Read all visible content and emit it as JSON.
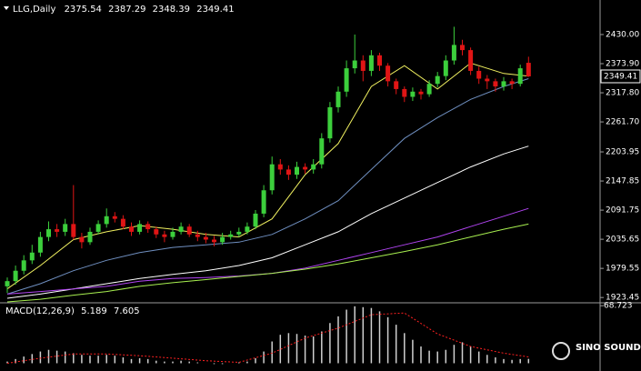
{
  "chart_data": [
    {
      "type": "candlestick",
      "title": "LLG,Daily",
      "up_color": "#3ccf3c",
      "down_color": "#e01515",
      "open": [
        1945,
        1955,
        1975,
        1995,
        2010,
        2040,
        2055,
        2050,
        2065,
        2040,
        2030,
        2050,
        2065,
        2080,
        2075,
        2060,
        2050,
        2065,
        2055,
        2045,
        2040,
        2050,
        2060,
        2045,
        2040,
        2035,
        2030,
        2040,
        2045,
        2050,
        2060,
        2085,
        2130,
        2180,
        2170,
        2160,
        2175,
        2170,
        2180,
        2230,
        2290,
        2320,
        2365,
        2380,
        2360,
        2390,
        2370,
        2340,
        2325,
        2310,
        2320,
        2315,
        2335,
        2350,
        2380,
        2410,
        2400,
        2360,
        2345,
        2340,
        2330,
        2340,
        2335,
        2375.54
      ],
      "high": [
        1962,
        1985,
        2005,
        2025,
        2050,
        2070,
        2065,
        2075,
        2140,
        2048,
        2058,
        2072,
        2095,
        2088,
        2082,
        2068,
        2072,
        2070,
        2060,
        2052,
        2058,
        2068,
        2065,
        2052,
        2048,
        2042,
        2048,
        2052,
        2058,
        2068,
        2092,
        2140,
        2195,
        2190,
        2178,
        2185,
        2182,
        2190,
        2240,
        2300,
        2330,
        2380,
        2430,
        2390,
        2400,
        2395,
        2375,
        2345,
        2330,
        2328,
        2325,
        2342,
        2358,
        2390,
        2445,
        2420,
        2405,
        2368,
        2352,
        2345,
        2348,
        2345,
        2372,
        2387.29
      ],
      "low": [
        1932,
        1948,
        1968,
        1988,
        2002,
        2032,
        2040,
        2042,
        2035,
        2018,
        2025,
        2045,
        2058,
        2068,
        2055,
        2042,
        2045,
        2048,
        2038,
        2030,
        2035,
        2045,
        2040,
        2032,
        2028,
        2022,
        2025,
        2035,
        2040,
        2045,
        2055,
        2078,
        2122,
        2160,
        2150,
        2152,
        2162,
        2162,
        2172,
        2222,
        2280,
        2310,
        2355,
        2340,
        2350,
        2360,
        2330,
        2315,
        2300,
        2302,
        2305,
        2310,
        2328,
        2342,
        2372,
        2390,
        2352,
        2335,
        2325,
        2320,
        2322,
        2325,
        2330,
        2348.39
      ],
      "close": [
        1955,
        1975,
        1995,
        2010,
        2040,
        2055,
        2050,
        2065,
        2040,
        2030,
        2050,
        2065,
        2080,
        2075,
        2060,
        2050,
        2065,
        2055,
        2045,
        2040,
        2050,
        2060,
        2045,
        2040,
        2035,
        2030,
        2040,
        2045,
        2050,
        2060,
        2085,
        2130,
        2180,
        2170,
        2160,
        2175,
        2170,
        2180,
        2230,
        2290,
        2320,
        2365,
        2380,
        2360,
        2390,
        2370,
        2340,
        2325,
        2310,
        2320,
        2315,
        2335,
        2350,
        2380,
        2410,
        2400,
        2360,
        2345,
        2340,
        2330,
        2340,
        2335,
        2365,
        2349.41
      ],
      "series": [
        {
          "color": "#f0f060",
          "x": [
            0,
            4,
            8,
            12,
            16,
            20,
            24,
            28,
            32,
            36,
            40,
            44,
            48,
            52,
            56,
            60,
            63
          ],
          "values": [
            1940,
            1985,
            2035,
            2050,
            2062,
            2055,
            2045,
            2040,
            2075,
            2160,
            2220,
            2330,
            2370,
            2325,
            2375,
            2355,
            2350
          ]
        },
        {
          "color": "#6f8fc0",
          "x": [
            0,
            4,
            8,
            12,
            16,
            20,
            24,
            28,
            32,
            36,
            40,
            44,
            48,
            52,
            56,
            60,
            63
          ],
          "values": [
            1930,
            1950,
            1975,
            1995,
            2010,
            2020,
            2025,
            2030,
            2045,
            2075,
            2110,
            2170,
            2230,
            2270,
            2305,
            2330,
            2345
          ]
        },
        {
          "color": "#ffffff",
          "x": [
            0,
            4,
            8,
            12,
            16,
            20,
            24,
            28,
            32,
            36,
            40,
            44,
            48,
            52,
            56,
            60,
            63
          ],
          "values": [
            1922,
            1930,
            1940,
            1950,
            1960,
            1968,
            1975,
            1985,
            2000,
            2025,
            2050,
            2085,
            2115,
            2145,
            2175,
            2200,
            2215
          ]
        },
        {
          "color": "#b044f0",
          "x": [
            0,
            4,
            8,
            12,
            16,
            20,
            24,
            28,
            32,
            36,
            40,
            44,
            48,
            52,
            56,
            60,
            63
          ],
          "values": [
            1930,
            1935,
            1940,
            1945,
            1955,
            1960,
            1962,
            1965,
            1970,
            1980,
            1995,
            2010,
            2025,
            2040,
            2060,
            2080,
            2095
          ]
        },
        {
          "color": "#a8f050",
          "x": [
            0,
            4,
            8,
            12,
            16,
            20,
            24,
            28,
            32,
            36,
            40,
            44,
            48,
            52,
            56,
            60,
            63
          ],
          "values": [
            1915,
            1920,
            1928,
            1935,
            1945,
            1952,
            1958,
            1964,
            1970,
            1978,
            1988,
            2000,
            2012,
            2025,
            2040,
            2055,
            2065
          ]
        }
      ],
      "ylim": [
        1915,
        2472
      ],
      "yticks": [
        2430.0,
        2373.9,
        2317.8,
        2261.7,
        2203.95,
        2147.85,
        2091.75,
        2035.65,
        1979.55,
        1923.45
      ]
    },
    {
      "type": "macd",
      "title": "MACD(12,26,9)",
      "color": "#d0d0d0",
      "values": [
        2,
        5,
        8,
        11,
        14,
        16,
        15,
        14,
        12,
        10,
        9,
        9,
        10,
        9,
        7,
        5,
        6,
        5,
        3,
        2,
        2,
        3,
        2,
        1,
        0,
        -1,
        -1,
        0,
        1,
        2,
        6,
        14,
        26,
        34,
        36,
        35,
        33,
        32,
        38,
        48,
        56,
        64,
        68,
        67,
        66,
        62,
        55,
        46,
        36,
        28,
        20,
        15,
        14,
        16,
        22,
        25,
        20,
        14,
        10,
        7,
        5,
        4,
        5,
        5.189
      ],
      "series": [
        {
          "color": "#ff2020",
          "x": [
            0,
            4,
            8,
            12,
            16,
            20,
            24,
            28,
            32,
            36,
            40,
            44,
            48,
            52,
            56,
            60,
            63
          ],
          "values": [
            0,
            6,
            11,
            11,
            9,
            6,
            3,
            1,
            12,
            30,
            42,
            58,
            60,
            35,
            20,
            12,
            7.605
          ]
        }
      ],
      "ylim": [
        -7.1,
        71.1
      ],
      "yticks": [
        68.723
      ]
    }
  ],
  "logo": "SINO SOUND"
}
